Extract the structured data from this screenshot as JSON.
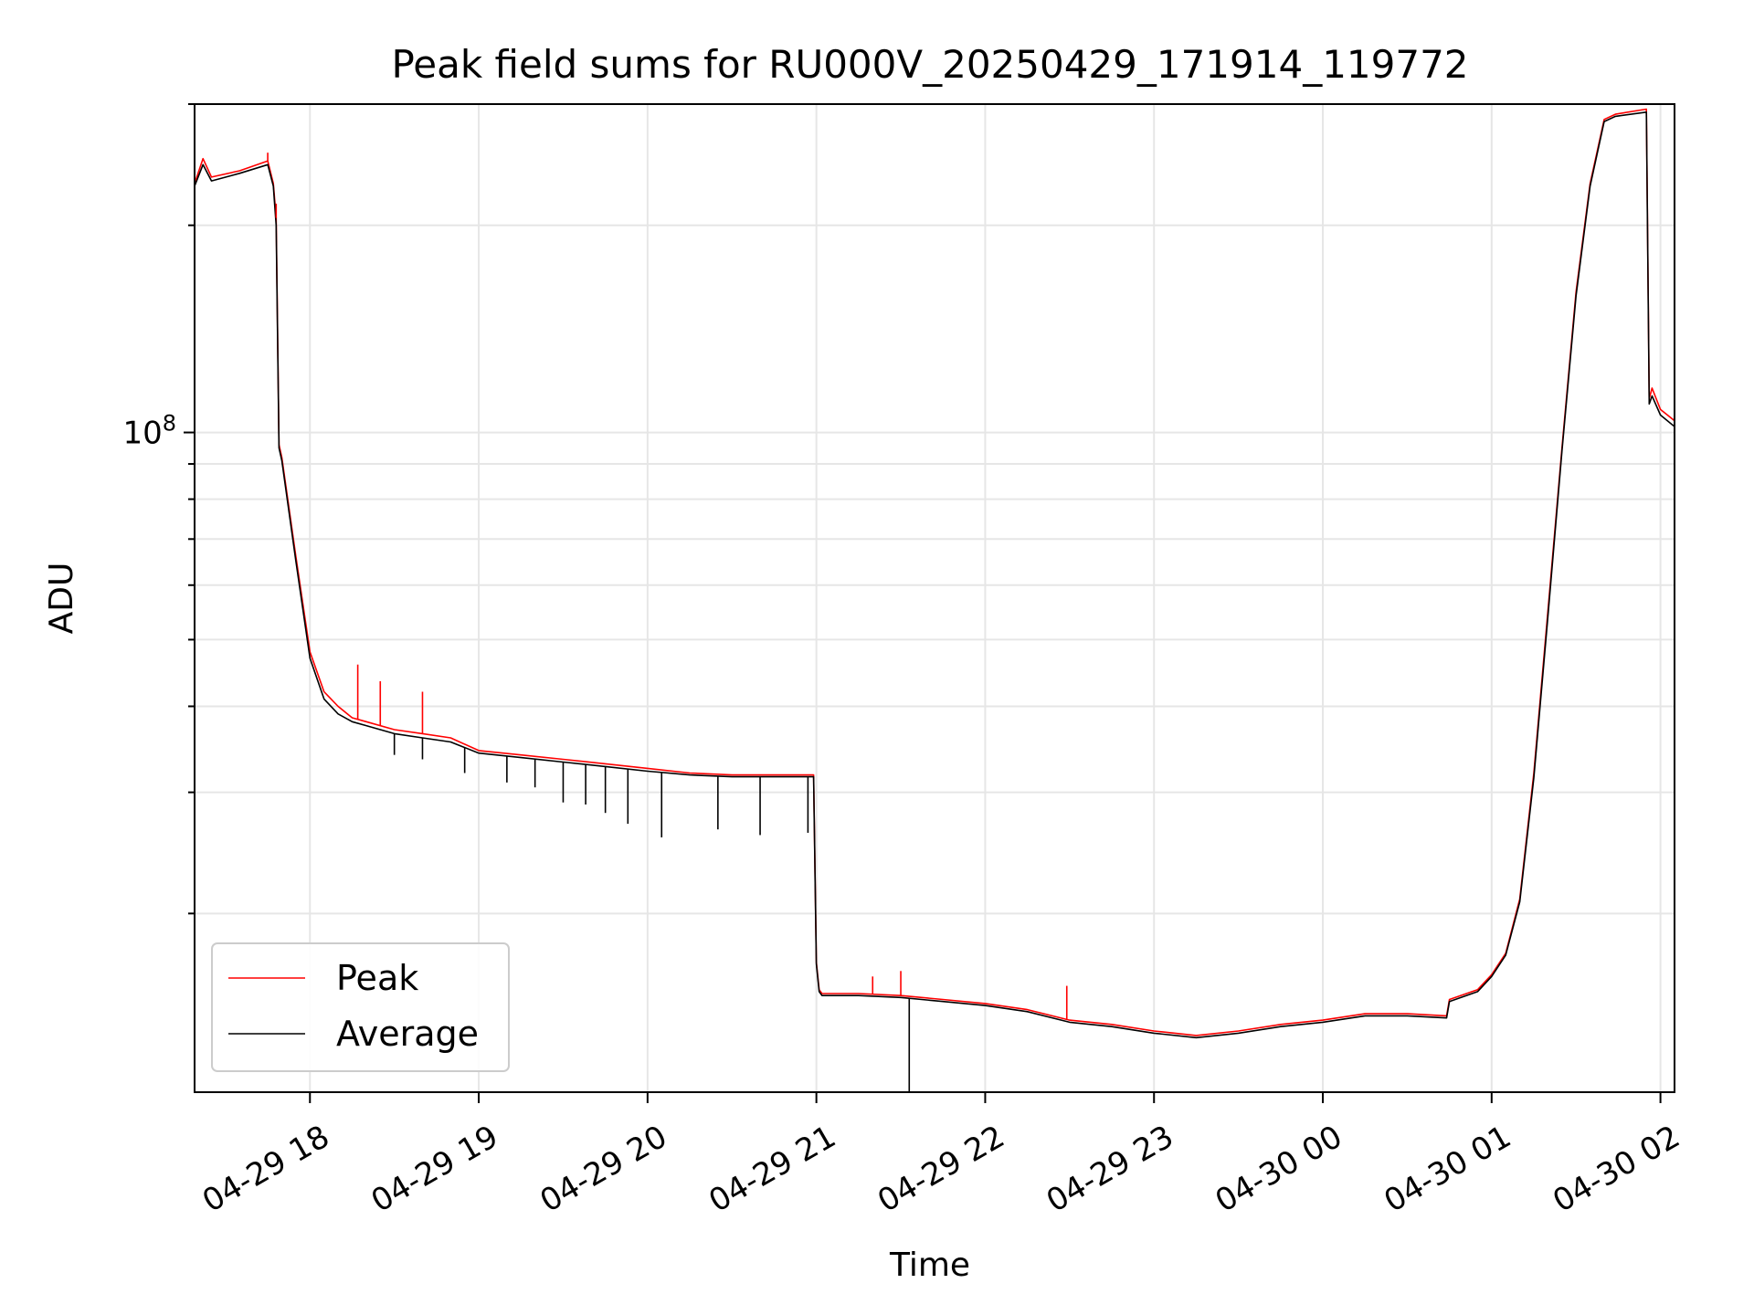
{
  "chart_data": {
    "type": "line",
    "title": "Peak field sums for RU000V_20250429_171914_119772",
    "xlabel": "Time",
    "ylabel": "ADU",
    "yscale": "log",
    "xlim": [
      "2025-04-29 17:19",
      "2025-04-30 02:05"
    ],
    "ylim": [
      11000000,
      300000000
    ],
    "x_ticks": [
      "04-29 18",
      "04-29 19",
      "04-29 20",
      "04-29 21",
      "04-29 22",
      "04-29 23",
      "04-30 00",
      "04-30 01",
      "04-30 02"
    ],
    "y_ticks": [
      {
        "value": 100000000,
        "base": "10",
        "exp": "8"
      }
    ],
    "grid": true,
    "legend_position": "lower-left",
    "colors": {
      "peak": "#ff0000",
      "average": "#000000"
    },
    "series": [
      {
        "name": "Peak",
        "x": [
          "2025-04-29 17:19",
          "2025-04-29 17:22",
          "2025-04-29 17:25",
          "2025-04-29 17:35",
          "2025-04-29 17:45",
          "2025-04-29 17:47",
          "2025-04-29 17:48",
          "2025-04-29 17:49",
          "2025-04-29 17:50",
          "2025-04-29 17:55",
          "2025-04-29 18:00",
          "2025-04-29 18:05",
          "2025-04-29 18:10",
          "2025-04-29 18:15",
          "2025-04-29 18:20",
          "2025-04-29 18:30",
          "2025-04-29 18:40",
          "2025-04-29 18:50",
          "2025-04-29 19:00",
          "2025-04-29 19:15",
          "2025-04-29 19:30",
          "2025-04-29 19:45",
          "2025-04-29 20:00",
          "2025-04-29 20:15",
          "2025-04-29 20:30",
          "2025-04-29 20:45",
          "2025-04-29 20:59",
          "2025-04-29 21:00",
          "2025-04-29 21:01",
          "2025-04-29 21:02",
          "2025-04-29 21:05",
          "2025-04-29 21:15",
          "2025-04-29 21:30",
          "2025-04-29 21:45",
          "2025-04-29 22:00",
          "2025-04-29 22:15",
          "2025-04-29 22:30",
          "2025-04-29 22:45",
          "2025-04-29 23:00",
          "2025-04-29 23:15",
          "2025-04-29 23:30",
          "2025-04-29 23:45",
          "2025-04-30 00:00",
          "2025-04-30 00:15",
          "2025-04-30 00:30",
          "2025-04-30 00:44",
          "2025-04-30 00:45",
          "2025-04-30 00:55",
          "2025-04-30 01:00",
          "2025-04-30 01:05",
          "2025-04-30 01:10",
          "2025-04-30 01:15",
          "2025-04-30 01:20",
          "2025-04-30 01:25",
          "2025-04-30 01:30",
          "2025-04-30 01:35",
          "2025-04-30 01:40",
          "2025-04-30 01:44",
          "2025-04-30 01:55",
          "2025-04-30 01:56",
          "2025-04-30 01:57",
          "2025-04-30 02:00",
          "2025-04-30 02:05"
        ],
        "values": [
          230000000,
          250000000,
          235000000,
          240000000,
          248000000,
          230000000,
          205000000,
          96000000,
          92000000,
          66000000,
          48000000,
          42000000,
          40000000,
          38500000,
          38000000,
          37000000,
          36500000,
          36000000,
          34500000,
          34000000,
          33500000,
          33000000,
          32500000,
          32000000,
          31800000,
          31800000,
          31800000,
          17000000,
          15500000,
          15300000,
          15300000,
          15300000,
          15200000,
          15000000,
          14800000,
          14500000,
          14000000,
          13800000,
          13500000,
          13300000,
          13500000,
          13800000,
          14000000,
          14300000,
          14300000,
          14200000,
          15000000,
          15500000,
          16300000,
          17500000,
          21000000,
          32000000,
          55000000,
          95000000,
          160000000,
          230000000,
          285000000,
          290000000,
          295000000,
          112000000,
          116000000,
          108000000,
          104000000
        ]
      },
      {
        "name": "Average",
        "x": [
          "2025-04-29 17:19",
          "2025-04-29 17:22",
          "2025-04-29 17:25",
          "2025-04-29 17:35",
          "2025-04-29 17:45",
          "2025-04-29 17:47",
          "2025-04-29 17:48",
          "2025-04-29 17:49",
          "2025-04-29 17:50",
          "2025-04-29 17:55",
          "2025-04-29 18:00",
          "2025-04-29 18:05",
          "2025-04-29 18:10",
          "2025-04-29 18:15",
          "2025-04-29 18:20",
          "2025-04-29 18:30",
          "2025-04-29 18:40",
          "2025-04-29 18:50",
          "2025-04-29 19:00",
          "2025-04-29 19:15",
          "2025-04-29 19:30",
          "2025-04-29 19:45",
          "2025-04-29 20:00",
          "2025-04-29 20:15",
          "2025-04-29 20:30",
          "2025-04-29 20:45",
          "2025-04-29 20:59",
          "2025-04-29 21:00",
          "2025-04-29 21:01",
          "2025-04-29 21:02",
          "2025-04-29 21:05",
          "2025-04-29 21:15",
          "2025-04-29 21:30",
          "2025-04-29 21:45",
          "2025-04-29 22:00",
          "2025-04-29 22:15",
          "2025-04-29 22:30",
          "2025-04-29 22:45",
          "2025-04-29 23:00",
          "2025-04-29 23:15",
          "2025-04-29 23:30",
          "2025-04-29 23:45",
          "2025-04-30 00:00",
          "2025-04-30 00:15",
          "2025-04-30 00:30",
          "2025-04-30 00:44",
          "2025-04-30 00:45",
          "2025-04-30 00:55",
          "2025-04-30 01:00",
          "2025-04-30 01:05",
          "2025-04-30 01:10",
          "2025-04-30 01:15",
          "2025-04-30 01:20",
          "2025-04-30 01:25",
          "2025-04-30 01:30",
          "2025-04-30 01:35",
          "2025-04-30 01:40",
          "2025-04-30 01:44",
          "2025-04-30 01:55",
          "2025-04-30 01:56",
          "2025-04-30 01:57",
          "2025-04-30 02:00",
          "2025-04-30 02:05"
        ],
        "values": [
          228000000,
          245000000,
          232000000,
          238000000,
          245000000,
          228000000,
          200000000,
          95000000,
          91000000,
          65000000,
          47000000,
          41000000,
          39000000,
          38000000,
          37500000,
          36500000,
          36000000,
          35500000,
          34200000,
          33700000,
          33200000,
          32700000,
          32200000,
          31800000,
          31600000,
          31600000,
          31600000,
          16900000,
          15400000,
          15200000,
          15200000,
          15200000,
          15100000,
          14900000,
          14700000,
          14400000,
          13900000,
          13700000,
          13400000,
          13200000,
          13400000,
          13700000,
          13900000,
          14200000,
          14200000,
          14100000,
          14900000,
          15400000,
          16200000,
          17400000,
          20800000,
          31500000,
          54000000,
          94000000,
          158000000,
          228000000,
          283000000,
          288000000,
          292000000,
          110000000,
          113000000,
          106000000,
          102000000
        ]
      }
    ],
    "dips": [
      {
        "series": "Average",
        "x": "2025-04-29 18:30",
        "value": 34000000
      },
      {
        "series": "Average",
        "x": "2025-04-29 18:40",
        "value": 33500000
      },
      {
        "series": "Average",
        "x": "2025-04-29 18:55",
        "value": 32000000
      },
      {
        "series": "Average",
        "x": "2025-04-29 19:10",
        "value": 31000000
      },
      {
        "series": "Average",
        "x": "2025-04-29 19:20",
        "value": 30500000
      },
      {
        "series": "Average",
        "x": "2025-04-29 19:30",
        "value": 29000000
      },
      {
        "series": "Average",
        "x": "2025-04-29 19:38",
        "value": 28800000
      },
      {
        "series": "Average",
        "x": "2025-04-29 19:45",
        "value": 28000000
      },
      {
        "series": "Average",
        "x": "2025-04-29 19:53",
        "value": 27000000
      },
      {
        "series": "Average",
        "x": "2025-04-29 20:05",
        "value": 25800000
      },
      {
        "series": "Average",
        "x": "2025-04-29 20:25",
        "value": 26500000
      },
      {
        "series": "Average",
        "x": "2025-04-29 20:40",
        "value": 26000000
      },
      {
        "series": "Average",
        "x": "2025-04-29 20:57",
        "value": 26200000
      },
      {
        "series": "Average",
        "x": "2025-04-29 21:33",
        "value": 11000000
      }
    ],
    "spikes": [
      {
        "series": "Peak",
        "x": "2025-04-29 17:45",
        "value": 255000000
      },
      {
        "series": "Peak",
        "x": "2025-04-29 17:48",
        "value": 215000000
      },
      {
        "series": "Peak",
        "x": "2025-04-29 18:17",
        "value": 46000000
      },
      {
        "series": "Peak",
        "x": "2025-04-29 18:25",
        "value": 43500000
      },
      {
        "series": "Peak",
        "x": "2025-04-29 18:40",
        "value": 42000000
      },
      {
        "series": "Peak",
        "x": "2025-04-29 21:20",
        "value": 16200000
      },
      {
        "series": "Peak",
        "x": "2025-04-29 21:30",
        "value": 16500000
      },
      {
        "series": "Peak",
        "x": "2025-04-29 22:29",
        "value": 15700000
      }
    ]
  }
}
